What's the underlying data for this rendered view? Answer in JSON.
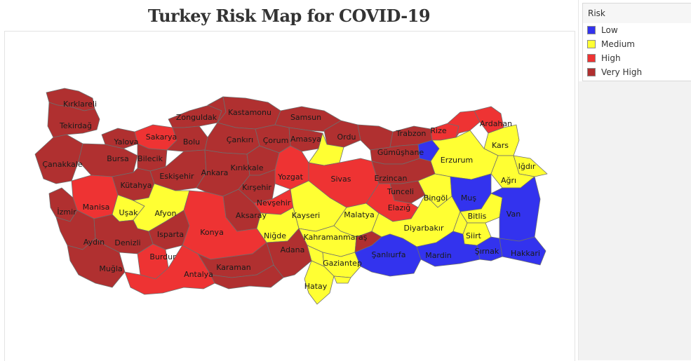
{
  "title": "Turkey Risk Map for COVID-19",
  "legend": {
    "title": "Risk",
    "items": [
      {
        "label": "Low",
        "color": "#3333ee"
      },
      {
        "label": "Medium",
        "color": "#ffff33"
      },
      {
        "label": "High",
        "color": "#ee3333"
      },
      {
        "label": "Very High",
        "color": "#b03030"
      }
    ]
  },
  "map_data": {
    "type": "choropleth",
    "provinces": [
      {
        "name": "Kırklareli",
        "risk": "Very High"
      },
      {
        "name": "Tekirdağ",
        "risk": "Very High"
      },
      {
        "name": "Zonguldak",
        "risk": "Very High"
      },
      {
        "name": "Kastamonu",
        "risk": "Very High"
      },
      {
        "name": "Samsun",
        "risk": "Very High"
      },
      {
        "name": "Sakarya",
        "risk": "High"
      },
      {
        "name": "Yalova",
        "risk": "Very High"
      },
      {
        "name": "Bolu",
        "risk": "Very High"
      },
      {
        "name": "Çankırı",
        "risk": "Very High"
      },
      {
        "name": "Çorum",
        "risk": "Very High"
      },
      {
        "name": "Amasya",
        "risk": "Very High"
      },
      {
        "name": "Ordu",
        "risk": "Very High"
      },
      {
        "name": "Trabzon",
        "risk": "Very High"
      },
      {
        "name": "Rize",
        "risk": "High"
      },
      {
        "name": "Ardahan",
        "risk": "High"
      },
      {
        "name": "Çanakkale",
        "risk": "Very High"
      },
      {
        "name": "Bursa",
        "risk": "Very High"
      },
      {
        "name": "Bilecik",
        "risk": "Very High"
      },
      {
        "name": "Gümüşhane",
        "risk": "Very High"
      },
      {
        "name": "Kars",
        "risk": "Medium"
      },
      {
        "name": "Erzurum",
        "risk": "Medium"
      },
      {
        "name": "Eskişehir",
        "risk": "Very High"
      },
      {
        "name": "Ankara",
        "risk": "Very High"
      },
      {
        "name": "Kırıkkale",
        "risk": "Very High"
      },
      {
        "name": "Yozgat",
        "risk": "High"
      },
      {
        "name": "Sivas",
        "risk": "High"
      },
      {
        "name": "Erzincan",
        "risk": "Very High"
      },
      {
        "name": "Iğdır",
        "risk": "Medium"
      },
      {
        "name": "Kütahya",
        "risk": "Very High"
      },
      {
        "name": "Ağrı",
        "risk": "Medium"
      },
      {
        "name": "Tunceli",
        "risk": "Very High"
      },
      {
        "name": "Kırşehir",
        "risk": "Very High"
      },
      {
        "name": "Bingöl",
        "risk": "Medium"
      },
      {
        "name": "Muş",
        "risk": "Low"
      },
      {
        "name": "Manisa",
        "risk": "High"
      },
      {
        "name": "İzmir",
        "risk": "Very High"
      },
      {
        "name": "Nevşehir",
        "risk": "High"
      },
      {
        "name": "Uşak",
        "risk": "Medium"
      },
      {
        "name": "Afyon",
        "risk": "Medium"
      },
      {
        "name": "Elazığ",
        "risk": "High"
      },
      {
        "name": "Kayseri",
        "risk": "Medium"
      },
      {
        "name": "Malatya",
        "risk": "Medium"
      },
      {
        "name": "Aksaray",
        "risk": "Very High"
      },
      {
        "name": "Bitlis",
        "risk": "Medium"
      },
      {
        "name": "Van",
        "risk": "Low"
      },
      {
        "name": "Diyarbakır",
        "risk": "Medium"
      },
      {
        "name": "Isparta",
        "risk": "Very High"
      },
      {
        "name": "Konya",
        "risk": "High"
      },
      {
        "name": "Niğde",
        "risk": "Medium"
      },
      {
        "name": "Kahramanmaraş",
        "risk": "Medium"
      },
      {
        "name": "Siirt",
        "risk": "Medium"
      },
      {
        "name": "Aydın",
        "risk": "Very High"
      },
      {
        "name": "Denizli",
        "risk": "Very High"
      },
      {
        "name": "Adana",
        "risk": "Very High"
      },
      {
        "name": "Şanlıurfa",
        "risk": "Low"
      },
      {
        "name": "Mardin",
        "risk": "Low"
      },
      {
        "name": "Şırnak",
        "risk": "Low"
      },
      {
        "name": "Hakkari",
        "risk": "Low"
      },
      {
        "name": "Burdur",
        "risk": "High"
      },
      {
        "name": "Muğla",
        "risk": "Very High"
      },
      {
        "name": "Karaman",
        "risk": "Very High"
      },
      {
        "name": "Gaziantep",
        "risk": "Medium"
      },
      {
        "name": "Antalya",
        "risk": "High"
      },
      {
        "name": "Hatay",
        "risk": "Medium"
      }
    ]
  }
}
